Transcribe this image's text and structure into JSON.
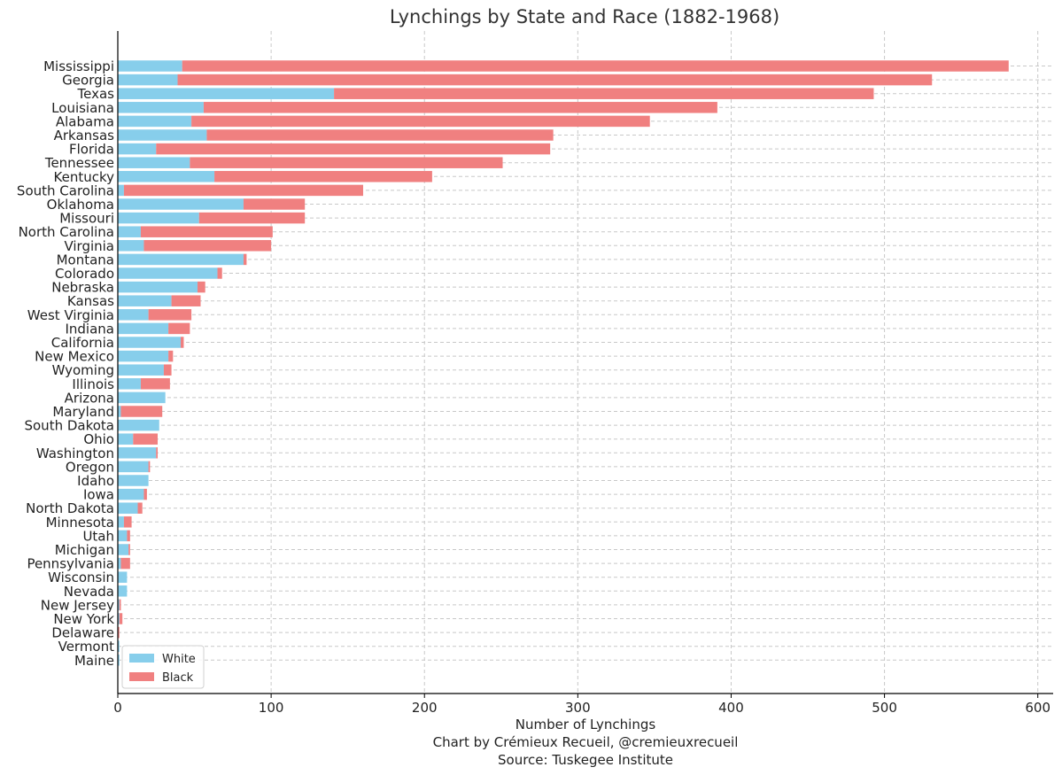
{
  "chart_data": {
    "type": "bar",
    "orientation": "horizontal",
    "stacked": true,
    "title": "Lynchings by State and Race (1882-1968)",
    "xlabel": "Number of Lynchings",
    "credit": "Chart by Crémieux Recueil, @cremieuxrecueil",
    "source": "Source: Tuskegee Institute",
    "xlim": [
      0,
      610
    ],
    "xticks": [
      0,
      100,
      200,
      300,
      400,
      500,
      600
    ],
    "grid": true,
    "legend_position": "bottom-left",
    "categories": [
      "Mississippi",
      "Georgia",
      "Texas",
      "Louisiana",
      "Alabama",
      "Arkansas",
      "Florida",
      "Tennessee",
      "Kentucky",
      "South Carolina",
      "Oklahoma",
      "Missouri",
      "North Carolina",
      "Virginia",
      "Montana",
      "Colorado",
      "Nebraska",
      "Kansas",
      "West Virginia",
      "Indiana",
      "California",
      "New Mexico",
      "Wyoming",
      "Illinois",
      "Arizona",
      "Maryland",
      "South Dakota",
      "Ohio",
      "Washington",
      "Oregon",
      "Idaho",
      "Iowa",
      "North Dakota",
      "Minnesota",
      "Utah",
      "Michigan",
      "Pennsylvania",
      "Wisconsin",
      "Nevada",
      "New Jersey",
      "New York",
      "Delaware",
      "Vermont",
      "Maine"
    ],
    "series": [
      {
        "name": "White",
        "color": "#87ceeb",
        "values": [
          42,
          39,
          141,
          56,
          48,
          58,
          25,
          47,
          63,
          4,
          82,
          53,
          15,
          17,
          82,
          65,
          52,
          35,
          20,
          33,
          41,
          33,
          30,
          15,
          31,
          2,
          27,
          10,
          25,
          20,
          20,
          17,
          13,
          4,
          6,
          7,
          2,
          6,
          6,
          1,
          1,
          0,
          1,
          1
        ]
      },
      {
        "name": "Black",
        "color": "#f08080",
        "values": [
          539,
          492,
          352,
          335,
          299,
          226,
          257,
          204,
          142,
          156,
          40,
          69,
          86,
          83,
          2,
          3,
          5,
          19,
          28,
          14,
          2,
          3,
          5,
          19,
          0,
          27,
          0,
          16,
          1,
          1,
          0,
          2,
          3,
          5,
          2,
          1,
          6,
          0,
          0,
          1,
          2,
          1,
          0,
          0
        ]
      }
    ]
  }
}
